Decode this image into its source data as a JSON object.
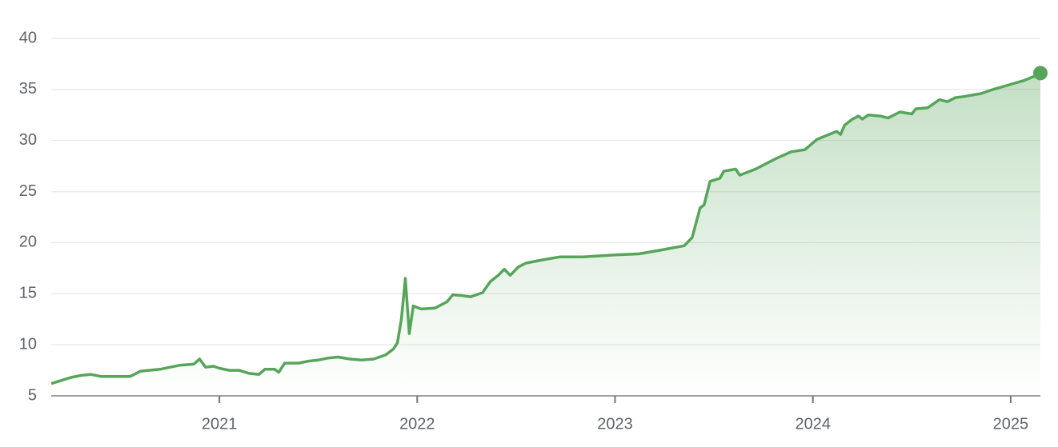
{
  "chart_data": {
    "type": "area",
    "x": [
      2020.15,
      2020.2,
      2020.25,
      2020.3,
      2020.35,
      2020.4,
      2020.5,
      2020.55,
      2020.6,
      2020.7,
      2020.8,
      2020.87,
      2020.9,
      2020.93,
      2020.97,
      2021.0,
      2021.05,
      2021.1,
      2021.15,
      2021.2,
      2021.23,
      2021.28,
      2021.3,
      2021.33,
      2021.4,
      2021.45,
      2021.5,
      2021.55,
      2021.6,
      2021.66,
      2021.72,
      2021.78,
      2021.84,
      2021.88,
      2021.9,
      2021.92,
      2021.94,
      2021.96,
      2021.98,
      2022.02,
      2022.09,
      2022.15,
      2022.18,
      2022.23,
      2022.27,
      2022.33,
      2022.37,
      2022.41,
      2022.44,
      2022.47,
      2022.51,
      2022.55,
      2022.63,
      2022.72,
      2022.84,
      2023.0,
      2023.12,
      2023.24,
      2023.35,
      2023.39,
      2023.43,
      2023.45,
      2023.48,
      2023.53,
      2023.55,
      2023.61,
      2023.63,
      2023.71,
      2023.81,
      2023.89,
      2023.96,
      2024.02,
      2024.12,
      2024.14,
      2024.16,
      2024.2,
      2024.23,
      2024.25,
      2024.28,
      2024.34,
      2024.38,
      2024.44,
      2024.5,
      2024.52,
      2024.58,
      2024.64,
      2024.68,
      2024.72,
      2024.76,
      2024.85,
      2024.91,
      2025.0,
      2025.07,
      2025.12,
      2025.15
    ],
    "series": [
      {
        "color": "#57a55a",
        "values": [
          6.2,
          6.5,
          6.8,
          7.0,
          7.1,
          6.9,
          6.9,
          6.9,
          7.4,
          7.6,
          8.0,
          8.1,
          8.6,
          7.8,
          7.9,
          7.7,
          7.5,
          7.5,
          7.2,
          7.1,
          7.6,
          7.6,
          7.3,
          8.2,
          8.2,
          8.4,
          8.5,
          8.7,
          8.8,
          8.6,
          8.5,
          8.6,
          9.0,
          9.6,
          10.2,
          12.5,
          16.5,
          11.1,
          13.8,
          13.5,
          13.6,
          14.2,
          14.9,
          14.8,
          14.7,
          15.1,
          16.2,
          16.8,
          17.4,
          16.8,
          17.6,
          18.0,
          18.3,
          18.6,
          18.6,
          18.8,
          18.9,
          19.3,
          19.7,
          20.5,
          23.4,
          23.7,
          26.0,
          26.3,
          27.0,
          27.2,
          26.6,
          27.2,
          28.2,
          28.9,
          29.1,
          30.1,
          30.9,
          30.6,
          31.5,
          32.1,
          32.4,
          32.1,
          32.5,
          32.4,
          32.2,
          32.8,
          32.6,
          33.1,
          33.2,
          34.0,
          33.8,
          34.2,
          34.3,
          34.6,
          35.0,
          35.5,
          35.9,
          36.3,
          36.6
        ]
      }
    ],
    "xlim": [
      2020.15,
      2025.15
    ],
    "xticks": [
      2021,
      2022,
      2023,
      2024,
      2025
    ],
    "ylim": [
      5,
      40
    ],
    "yticks": [
      5,
      10,
      15,
      20,
      25,
      30,
      35,
      40
    ],
    "grid": true
  }
}
